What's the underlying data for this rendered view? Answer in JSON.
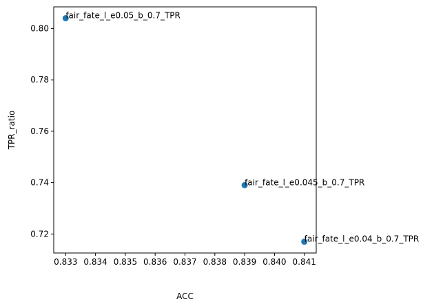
{
  "chart_data": {
    "type": "scatter",
    "title": "",
    "xlabel": "ACC",
    "ylabel": "TPR_ratio",
    "xlim": [
      0.8326,
      0.8414
    ],
    "ylim": [
      0.7126,
      0.8084
    ],
    "xticks": [
      0.833,
      0.834,
      0.835,
      0.836,
      0.837,
      0.838,
      0.839,
      0.84,
      0.841
    ],
    "xtick_labels": [
      "0.833",
      "0.834",
      "0.835",
      "0.836",
      "0.837",
      "0.838",
      "0.839",
      "0.840",
      "0.841"
    ],
    "yticks": [
      0.72,
      0.74,
      0.76,
      0.78,
      0.8
    ],
    "ytick_labels": [
      "0.72",
      "0.74",
      "0.76",
      "0.78",
      "0.80"
    ],
    "grid": false,
    "marker_color": "#1f77b4",
    "points": [
      {
        "x": 0.833,
        "y": 0.804,
        "label": "fair_fate_l_e0.05_b_0.7_TPR"
      },
      {
        "x": 0.839,
        "y": 0.739,
        "label": "fair_fate_l_e0.045_b_0.7_TPR"
      },
      {
        "x": 0.841,
        "y": 0.717,
        "label": "fair_fate_l_e0.04_b_0.7_TPR"
      }
    ]
  }
}
